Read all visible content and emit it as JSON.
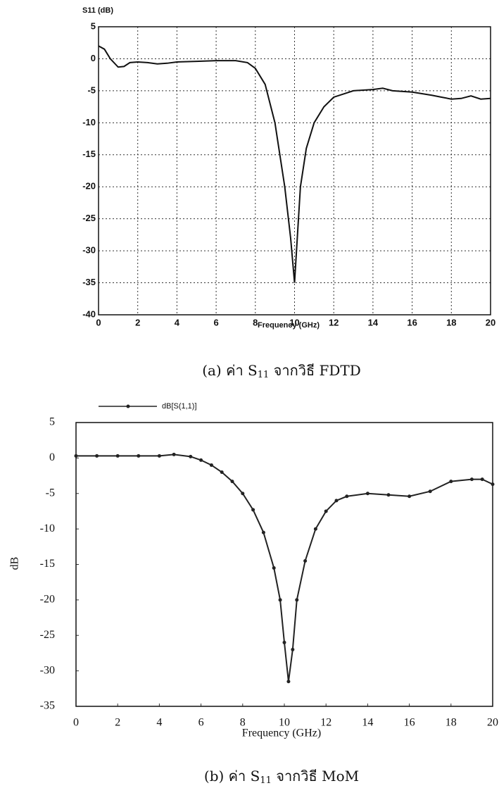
{
  "chart_data": [
    {
      "type": "line",
      "ylabel": "S11 (dB)",
      "xlabel": "Frequency (GHz)",
      "caption": [
        "(a)  ค่า S",
        "11",
        " จากวิธี FDTD"
      ],
      "x": [
        0,
        0.3,
        0.6,
        1,
        1.3,
        1.6,
        2,
        2.5,
        3,
        3.5,
        4,
        5,
        6,
        7,
        7.6,
        8,
        8.5,
        9,
        9.5,
        9.8,
        10,
        10.1,
        10.3,
        10.6,
        11,
        11.5,
        12,
        12.5,
        13,
        14,
        14.5,
        15,
        16,
        17,
        17.5,
        18,
        18.5,
        19,
        19.5,
        20
      ],
      "series": [
        {
          "color": "#111111",
          "values": [
            2,
            1.5,
            0,
            -1.3,
            -1.2,
            -0.6,
            -0.5,
            -0.6,
            -0.8,
            -0.7,
            -0.5,
            -0.4,
            -0.3,
            -0.3,
            -0.6,
            -1.5,
            -4,
            -10,
            -20,
            -28,
            -35,
            -30,
            -20,
            -14,
            -10,
            -7.5,
            -6,
            -5.5,
            -5,
            -4.8,
            -4.6,
            -5,
            -5.2,
            -5.7,
            -6,
            -6.3,
            -6.2,
            -5.8,
            -6.3,
            -6.2
          ]
        }
      ],
      "xlim": [
        0,
        20
      ],
      "xticks": [
        0,
        2,
        4,
        6,
        8,
        10,
        12,
        14,
        16,
        18,
        20
      ],
      "ylim": [
        -40,
        5
      ],
      "yticks": [
        -40,
        -35,
        -30,
        -25,
        -20,
        -15,
        -10,
        -5,
        0,
        5
      ],
      "grid": true
    },
    {
      "type": "line",
      "ylabel": "dB",
      "xlabel": "Frequency (GHz)",
      "caption": [
        "(b)  ค่า S",
        "11",
        " จากวิธี MoM"
      ],
      "x": [
        0,
        1,
        2,
        3,
        4,
        4.7,
        5.5,
        6,
        6.5,
        7,
        7.5,
        8,
        8.5,
        9,
        9.5,
        9.8,
        10,
        10.2,
        10.4,
        10.6,
        11,
        11.5,
        12,
        12.5,
        13,
        14,
        15,
        16,
        17,
        18,
        19,
        19.5,
        20
      ],
      "series": [
        {
          "name": "dB[S(1,1)]",
          "color": "#222222",
          "marker": true,
          "values": [
            0.3,
            0.3,
            0.3,
            0.3,
            0.3,
            0.5,
            0.2,
            -0.3,
            -1,
            -2,
            -3.3,
            -5,
            -7.3,
            -10.5,
            -15.5,
            -20,
            -26,
            -31.5,
            -27,
            -20,
            -14.5,
            -10,
            -7.5,
            -6,
            -5.4,
            -5,
            -5.2,
            -5.4,
            -4.7,
            -3.3,
            -3,
            -3,
            -3.7
          ]
        }
      ],
      "xlim": [
        0,
        20
      ],
      "xticks": [
        0,
        2,
        4,
        6,
        8,
        10,
        12,
        14,
        16,
        18,
        20
      ],
      "ylim": [
        -35,
        5
      ],
      "yticks": [
        -35,
        -30,
        -25,
        -20,
        -15,
        -10,
        -5,
        0,
        5
      ],
      "grid": false
    }
  ]
}
